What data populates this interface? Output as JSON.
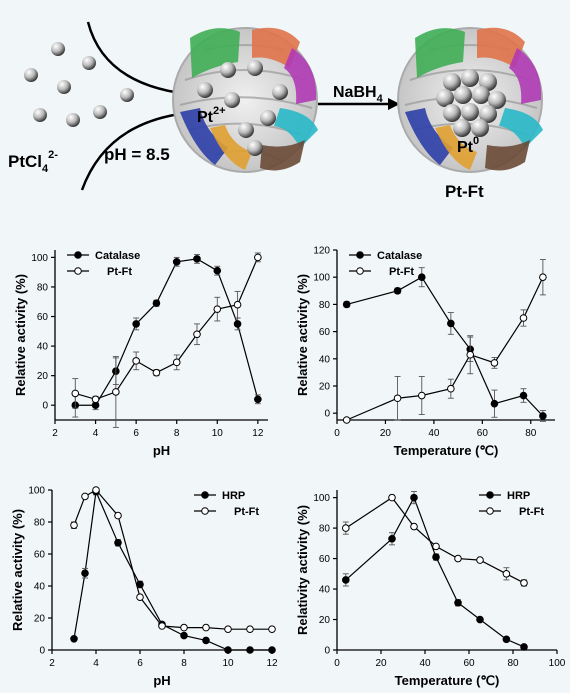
{
  "scheme": {
    "reactant_label": "PtCl",
    "reactant_sub": "4",
    "reactant_sup": "2-",
    "ph_label": "pH = 8.5",
    "pt_ion_label": "Pt",
    "pt_ion_sup": "2+",
    "reagent_label": "NaBH",
    "reagent_sub": "4",
    "pt0_label": "Pt",
    "pt0_sup": "0",
    "product_label": "Pt-Ft"
  },
  "colors": {
    "background": "#f1f6f8",
    "line": "#000000",
    "filled_marker": "#000000",
    "open_marker": "#ffffff"
  },
  "chart_data": [
    {
      "type": "line",
      "xlabel": "pH",
      "ylabel": "Relative activity (%)",
      "xlim": [
        2,
        12.5
      ],
      "ylim": [
        -10,
        105
      ],
      "xticks": [
        2,
        4,
        6,
        8,
        10,
        12
      ],
      "yticks": [
        0,
        20,
        40,
        60,
        80,
        100
      ],
      "legend_position": "top-left",
      "series": [
        {
          "name": "Catalase",
          "marker": "filled",
          "x": [
            3,
            4,
            5,
            6,
            7,
            8,
            9,
            10,
            11,
            12
          ],
          "y": [
            0,
            0,
            23,
            55,
            69,
            97,
            99,
            91,
            55,
            4
          ],
          "err": [
            8,
            3,
            9,
            4,
            2,
            3,
            3,
            3,
            4,
            3
          ]
        },
        {
          "name": "Pt-Ft",
          "marker": "open",
          "x": [
            3,
            4,
            5,
            6,
            7,
            8,
            9,
            10,
            11,
            12
          ],
          "y": [
            8,
            4,
            9,
            30,
            22,
            29,
            48,
            65,
            68,
            100
          ],
          "err": [
            10,
            2,
            24,
            6,
            2,
            5,
            7,
            8,
            9,
            3
          ]
        }
      ]
    },
    {
      "type": "line",
      "xlabel": "Temperature (℃)",
      "ylabel": "Relative activity (%)",
      "xlim": [
        0,
        90
      ],
      "ylim": [
        -5,
        120
      ],
      "xticks": [
        0,
        20,
        40,
        60,
        80
      ],
      "yticks": [
        0,
        20,
        40,
        60,
        80,
        100,
        120
      ],
      "legend_position": "top-left",
      "series": [
        {
          "name": "Catalase",
          "marker": "filled",
          "x": [
            4,
            25,
            35,
            47,
            55,
            65,
            77,
            85
          ],
          "y": [
            80,
            90,
            100,
            66,
            47,
            7,
            13,
            -2
          ],
          "err": [
            2,
            2,
            7,
            8,
            9,
            10,
            5,
            4
          ]
        },
        {
          "name": "Pt-Ft",
          "marker": "open",
          "x": [
            4,
            25,
            35,
            47,
            55,
            65,
            77,
            85
          ],
          "y": [
            -5,
            11,
            13,
            18,
            43,
            37,
            70,
            100
          ],
          "err": [
            1,
            16,
            14,
            7,
            14,
            4,
            6,
            13
          ]
        }
      ]
    },
    {
      "type": "line",
      "xlabel": "pH",
      "ylabel": "Relative activity (%)",
      "xlim": [
        2,
        12
      ],
      "ylim": [
        0,
        100
      ],
      "xticks": [
        2,
        4,
        6,
        8,
        10,
        12
      ],
      "yticks": [
        0,
        20,
        40,
        60,
        80,
        100
      ],
      "legend_position": "top-right",
      "series": [
        {
          "name": "HRP",
          "marker": "filled",
          "x": [
            3,
            3.5,
            4,
            5,
            6,
            7,
            8,
            9,
            10,
            11,
            12
          ],
          "y": [
            7,
            48,
            99,
            67,
            41,
            16,
            9,
            6,
            0,
            0,
            0
          ],
          "err": [
            0,
            3,
            2,
            2,
            2,
            1,
            1,
            1,
            0,
            0,
            0
          ]
        },
        {
          "name": "Pt-Ft",
          "marker": "open",
          "x": [
            3,
            3.5,
            4,
            5,
            6,
            7,
            8,
            9,
            10,
            11,
            12
          ],
          "y": [
            78,
            96,
            100,
            84,
            33,
            15,
            14,
            14,
            13,
            13,
            13
          ],
          "err": [
            2,
            1,
            0,
            1,
            1,
            1,
            1,
            1,
            1,
            1,
            1
          ]
        }
      ]
    },
    {
      "type": "line",
      "xlabel": "Temperature (℃)",
      "ylabel": "Relativity activity (%)",
      "xlim": [
        0,
        100
      ],
      "ylim": [
        0,
        105
      ],
      "xticks": [
        0,
        20,
        40,
        60,
        80,
        100
      ],
      "yticks": [
        0,
        20,
        40,
        60,
        80,
        100
      ],
      "legend_position": "top-right",
      "series": [
        {
          "name": "HRP",
          "marker": "filled",
          "x": [
            4,
            25,
            35,
            45,
            55,
            65,
            77,
            85
          ],
          "y": [
            46,
            73,
            100,
            61,
            31,
            20,
            7,
            2
          ],
          "err": [
            4,
            4,
            4,
            2,
            2,
            1,
            1,
            1
          ]
        },
        {
          "name": "Pt-Ft",
          "marker": "open",
          "x": [
            4,
            25,
            35,
            45,
            55,
            65,
            77,
            85
          ],
          "y": [
            80,
            100,
            81,
            68,
            60,
            59,
            50,
            44
          ],
          "err": [
            4,
            1,
            1,
            1,
            1,
            1,
            4,
            2
          ]
        }
      ]
    }
  ]
}
